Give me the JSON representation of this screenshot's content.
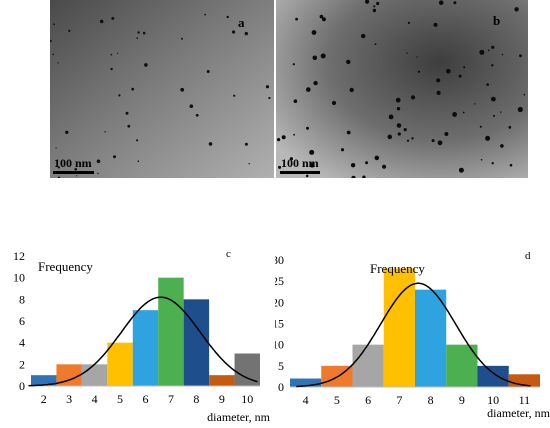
{
  "micrographs": [
    {
      "letter": "a",
      "scale_label": "100 nm"
    },
    {
      "letter": "b",
      "scale_label": "100 nm"
    }
  ],
  "chart_data": [
    {
      "type": "bar",
      "panel": "c",
      "annotation": "Frequency",
      "xlabel": "diameter, nm",
      "categories": [
        "2",
        "3",
        "4",
        "5",
        "6",
        "7",
        "8",
        "9",
        "10"
      ],
      "values": [
        1,
        2,
        2,
        4,
        7,
        10,
        8,
        1,
        3
      ],
      "colors": [
        "#2e75b6",
        "#f07a2c",
        "#a6a6a6",
        "#ffc000",
        "#2ea3e0",
        "#4cb050",
        "#1e4e8c",
        "#c55a11",
        "#737373"
      ],
      "ylim": [
        0,
        12
      ],
      "yticks": [
        0,
        2,
        4,
        6,
        8,
        10,
        12
      ],
      "xticks": [
        2,
        3,
        4,
        5,
        6,
        7,
        8,
        9,
        10
      ],
      "fit": {
        "type": "gaussian",
        "peak": 8.2,
        "center": 6.6,
        "sigma": 1.55
      }
    },
    {
      "type": "bar",
      "panel": "d",
      "annotation": "Frequency",
      "xlabel": "diameter, nm",
      "categories": [
        "4",
        "5",
        "6",
        "7",
        "8",
        "9",
        "10",
        "11"
      ],
      "values": [
        2,
        5,
        10,
        28,
        23,
        10,
        5,
        3
      ],
      "colors": [
        "#2e75b6",
        "#f07a2c",
        "#a6a6a6",
        "#ffc000",
        "#2ea3e0",
        "#4cb050",
        "#1e4e8c",
        "#c55a11"
      ],
      "ylim": [
        0,
        30
      ],
      "yticks": [
        0,
        5,
        10,
        15,
        20,
        25,
        30
      ],
      "xticks": [
        4,
        5,
        6,
        7,
        8,
        9,
        10,
        11
      ],
      "fit": {
        "type": "gaussian",
        "peak": 24.5,
        "center": 7.6,
        "sigma": 1.2
      }
    }
  ]
}
